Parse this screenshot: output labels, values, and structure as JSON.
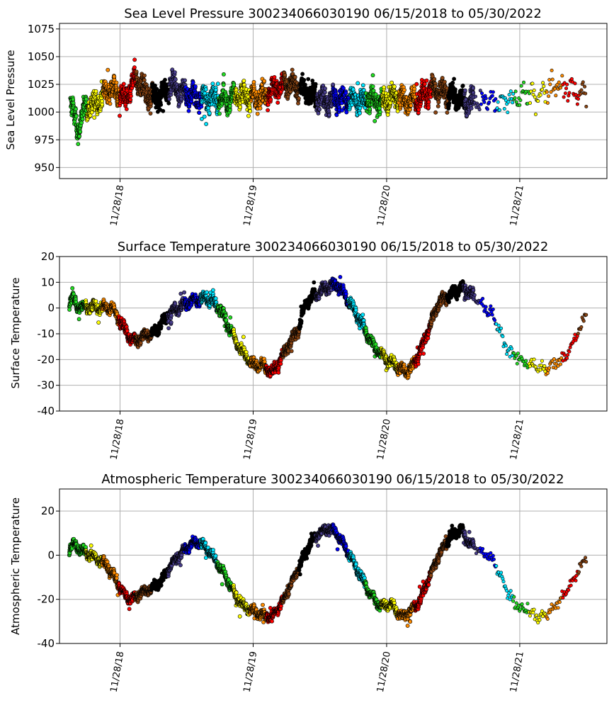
{
  "chart_data": [
    {
      "type": "scatter",
      "title": "Sea Level Pressure 300234066030190  06/15/2018 to 05/30/2022",
      "ylabel": "Sea Level Pressure",
      "xlabel": "",
      "ylim": [
        940,
        1080
      ],
      "yticks": [
        950,
        975,
        1000,
        1025,
        1050,
        1075
      ],
      "xlim": [
        "2018-06-15",
        "2022-07-25"
      ],
      "xticks": [
        "2018-11-28",
        "2019-11-28",
        "2020-11-28",
        "2021-11-28"
      ],
      "xtick_labels": [
        "11/28/18",
        "11/28/19",
        "11/28/20",
        "11/28/21"
      ],
      "grid": true,
      "series_colors": [
        "#22dd22",
        "#ffff00",
        "#ff8c00",
        "#ff0000",
        "#8b4513",
        "#000000",
        "#483d8b",
        "#0000ff",
        "#00e5ff"
      ],
      "profile": [
        [
          "2018-07-15",
          1010
        ],
        [
          "2018-07-25",
          995
        ],
        [
          "2018-08-05",
          985
        ],
        [
          "2018-08-20",
          1000
        ],
        [
          "2018-09-01",
          1005
        ],
        [
          "2018-09-20",
          1008
        ],
        [
          "2018-10-10",
          1012
        ],
        [
          "2018-10-20",
          1020
        ],
        [
          "2018-11-10",
          1020
        ],
        [
          "2018-11-28",
          1018
        ],
        [
          "2018-12-10",
          1010
        ],
        [
          "2018-12-25",
          1020
        ],
        [
          "2019-01-10",
          1030
        ],
        [
          "2019-02-01",
          1020
        ],
        [
          "2019-02-20",
          1015
        ],
        [
          "2019-03-10",
          1012
        ],
        [
          "2019-04-01",
          1020
        ],
        [
          "2019-04-20",
          1025
        ],
        [
          "2019-05-15",
          1018
        ],
        [
          "2019-06-10",
          1015
        ],
        [
          "2019-07-10",
          1012
        ],
        [
          "2019-08-15",
          1012
        ],
        [
          "2019-09-20",
          1010
        ],
        [
          "2019-10-20",
          1015
        ],
        [
          "2019-11-28",
          1012
        ],
        [
          "2020-01-01",
          1015
        ],
        [
          "2020-02-01",
          1022
        ],
        [
          "2020-03-10",
          1025
        ],
        [
          "2020-04-15",
          1020
        ],
        [
          "2020-05-20",
          1012
        ],
        [
          "2020-06-20",
          1010
        ],
        [
          "2020-08-01",
          1012
        ],
        [
          "2020-09-15",
          1010
        ],
        [
          "2020-10-15",
          1012
        ],
        [
          "2020-11-15",
          1008
        ],
        [
          "2020-12-20",
          1015
        ],
        [
          "2021-01-20",
          1010
        ],
        [
          "2021-02-20",
          1012
        ],
        [
          "2021-04-01",
          1020
        ],
        [
          "2021-05-10",
          1018
        ],
        [
          "2021-06-15",
          1012
        ],
        [
          "2021-07-20",
          1008
        ],
        [
          "2021-08-20",
          1010
        ],
        [
          "2021-09-20",
          1008
        ],
        [
          "2021-10-20",
          1010
        ],
        [
          "2021-11-28",
          1015
        ],
        [
          "2022-01-15",
          1018
        ],
        [
          "2022-02-20",
          1022
        ],
        [
          "2022-03-20",
          1025
        ],
        [
          "2022-04-20",
          1020
        ],
        [
          "2022-05-30",
          1018
        ]
      ]
    },
    {
      "type": "scatter",
      "title": "Surface Temperature 300234066030190  06/15/2018 to 05/30/2022",
      "ylabel": "Surface Temperature",
      "xlabel": "",
      "ylim": [
        -40,
        20
      ],
      "yticks": [
        -40,
        -30,
        -20,
        -10,
        0,
        10,
        20
      ],
      "xlim": [
        "2018-06-15",
        "2022-07-25"
      ],
      "xticks": [
        "2018-11-28",
        "2019-11-28",
        "2020-11-28",
        "2021-11-28"
      ],
      "xtick_labels": [
        "11/28/18",
        "11/28/19",
        "11/28/20",
        "11/28/21"
      ],
      "grid": true,
      "series_colors": [
        "#22dd22",
        "#ffff00",
        "#ff8c00",
        "#ff0000",
        "#8b4513",
        "#000000",
        "#483d8b",
        "#0000ff",
        "#00e5ff"
      ],
      "profile": [
        [
          "2018-07-12",
          2
        ],
        [
          "2018-07-20",
          4
        ],
        [
          "2018-08-01",
          1
        ],
        [
          "2018-08-20",
          0.5
        ],
        [
          "2018-09-15",
          0.3
        ],
        [
          "2018-10-15",
          0.2
        ],
        [
          "2018-11-05",
          0.1
        ],
        [
          "2018-11-20",
          -3
        ],
        [
          "2018-12-01",
          -6
        ],
        [
          "2018-12-15",
          -9
        ],
        [
          "2019-01-01",
          -13
        ],
        [
          "2019-01-20",
          -12
        ],
        [
          "2019-02-10",
          -10
        ],
        [
          "2019-03-01",
          -10
        ],
        [
          "2019-03-20",
          -6
        ],
        [
          "2019-04-15",
          -2
        ],
        [
          "2019-05-15",
          1
        ],
        [
          "2019-06-20",
          3
        ],
        [
          "2019-07-20",
          4
        ],
        [
          "2019-08-15",
          2
        ],
        [
          "2019-09-10",
          -3
        ],
        [
          "2019-09-25",
          -8
        ],
        [
          "2019-10-15",
          -14
        ],
        [
          "2019-11-05",
          -18
        ],
        [
          "2019-11-28",
          -22
        ],
        [
          "2019-12-20",
          -22
        ],
        [
          "2020-01-20",
          -25
        ],
        [
          "2020-02-10",
          -20
        ],
        [
          "2020-03-01",
          -15
        ],
        [
          "2020-04-01",
          -8
        ],
        [
          "2020-04-20",
          2
        ],
        [
          "2020-05-15",
          5
        ],
        [
          "2020-06-15",
          8
        ],
        [
          "2020-07-15",
          9
        ],
        [
          "2020-08-01",
          6
        ],
        [
          "2020-08-20",
          2
        ],
        [
          "2020-09-10",
          -3
        ],
        [
          "2020-10-01",
          -9
        ],
        [
          "2020-10-25",
          -15
        ],
        [
          "2020-11-28",
          -20
        ],
        [
          "2020-12-20",
          -22
        ],
        [
          "2021-01-20",
          -25
        ],
        [
          "2021-02-10",
          -22
        ],
        [
          "2021-03-05",
          -15
        ],
        [
          "2021-04-01",
          -5
        ],
        [
          "2021-04-20",
          2
        ],
        [
          "2021-05-20",
          5
        ],
        [
          "2021-06-20",
          8
        ],
        [
          "2021-07-15",
          6
        ],
        [
          "2021-08-01",
          3
        ],
        [
          "2021-08-20",
          1
        ],
        [
          "2021-09-10",
          -2
        ],
        [
          "2021-10-01",
          -7
        ],
        [
          "2021-10-20",
          -15
        ],
        [
          "2021-11-10",
          -19
        ],
        [
          "2021-12-10",
          -21
        ],
        [
          "2022-01-10",
          -22
        ],
        [
          "2022-02-10",
          -24
        ],
        [
          "2022-03-01",
          -22
        ],
        [
          "2022-03-25",
          -20
        ],
        [
          "2022-04-15",
          -16
        ],
        [
          "2022-05-05",
          -10
        ],
        [
          "2022-05-30",
          -2
        ]
      ]
    },
    {
      "type": "scatter",
      "title": "Atmospheric Temperature 300234066030190  06/15/2018 to 05/30/2022",
      "ylabel": "Atmospheric Temperature",
      "xlabel": "",
      "ylim": [
        -40,
        30
      ],
      "yticks": [
        -40,
        -20,
        0,
        20
      ],
      "xlim": [
        "2018-06-15",
        "2022-07-25"
      ],
      "xticks": [
        "2018-11-28",
        "2019-11-28",
        "2020-11-28",
        "2021-11-28"
      ],
      "xtick_labels": [
        "11/28/18",
        "11/28/19",
        "11/28/20",
        "11/28/21"
      ],
      "grid": true,
      "series_colors": [
        "#22dd22",
        "#ffff00",
        "#ff8c00",
        "#ff0000",
        "#8b4513",
        "#000000",
        "#483d8b",
        "#0000ff",
        "#00e5ff"
      ],
      "profile": [
        [
          "2018-07-12",
          3
        ],
        [
          "2018-07-25",
          5
        ],
        [
          "2018-08-15",
          2
        ],
        [
          "2018-09-10",
          0
        ],
        [
          "2018-10-01",
          -2
        ],
        [
          "2018-10-25",
          -5
        ],
        [
          "2018-11-20",
          -12
        ],
        [
          "2018-12-10",
          -18
        ],
        [
          "2019-01-01",
          -20
        ],
        [
          "2019-01-25",
          -17
        ],
        [
          "2019-02-20",
          -15
        ],
        [
          "2019-03-20",
          -12
        ],
        [
          "2019-04-15",
          -5
        ],
        [
          "2019-05-10",
          0
        ],
        [
          "2019-06-10",
          5
        ],
        [
          "2019-07-01",
          6
        ],
        [
          "2019-07-25",
          3
        ],
        [
          "2019-08-20",
          -3
        ],
        [
          "2019-09-15",
          -10
        ],
        [
          "2019-10-10",
          -18
        ],
        [
          "2019-11-01",
          -23
        ],
        [
          "2019-11-28",
          -25
        ],
        [
          "2019-12-20",
          -27
        ],
        [
          "2020-01-20",
          -28
        ],
        [
          "2020-02-20",
          -20
        ],
        [
          "2020-03-15",
          -12
        ],
        [
          "2020-04-10",
          -2
        ],
        [
          "2020-05-01",
          5
        ],
        [
          "2020-05-25",
          10
        ],
        [
          "2020-06-20",
          12
        ],
        [
          "2020-07-15",
          10
        ],
        [
          "2020-08-05",
          4
        ],
        [
          "2020-08-25",
          -2
        ],
        [
          "2020-09-20",
          -10
        ],
        [
          "2020-10-15",
          -18
        ],
        [
          "2020-11-10",
          -23
        ],
        [
          "2020-12-10",
          -22
        ],
        [
          "2021-01-10",
          -28
        ],
        [
          "2021-02-05",
          -25
        ],
        [
          "2021-03-01",
          -20
        ],
        [
          "2021-03-25",
          -10
        ],
        [
          "2021-04-20",
          0
        ],
        [
          "2021-05-20",
          8
        ],
        [
          "2021-06-20",
          12
        ],
        [
          "2021-07-15",
          5
        ],
        [
          "2021-08-10",
          2
        ],
        [
          "2021-09-01",
          0
        ],
        [
          "2021-09-25",
          -5
        ],
        [
          "2021-10-20",
          -15
        ],
        [
          "2021-11-15",
          -22
        ],
        [
          "2021-12-15",
          -25
        ],
        [
          "2022-01-20",
          -28
        ],
        [
          "2022-02-20",
          -26
        ],
        [
          "2022-03-20",
          -20
        ],
        [
          "2022-04-20",
          -12
        ],
        [
          "2022-05-15",
          -5
        ],
        [
          "2022-05-30",
          0
        ]
      ]
    }
  ]
}
